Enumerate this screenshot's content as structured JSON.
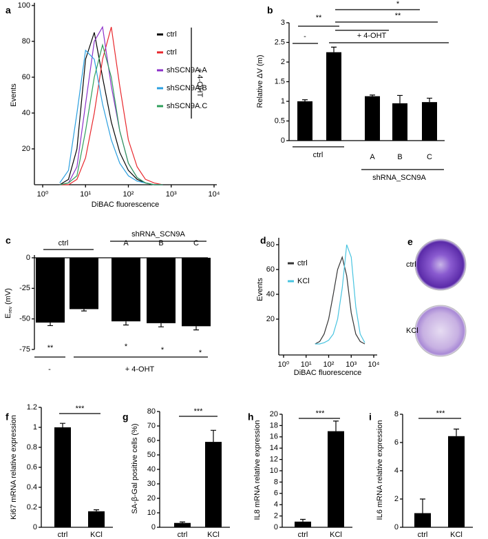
{
  "chart_data": [
    {
      "panel": "a",
      "type": "line",
      "x_label": "DiBAC fluorescence",
      "y_label": "Events",
      "log_x": true,
      "xlim": [
        1,
        10000
      ],
      "xticks": [
        {
          "value": 1,
          "label": "10⁰"
        },
        {
          "value": 10,
          "label": "10¹"
        },
        {
          "value": 100,
          "label": "10²"
        },
        {
          "value": 1000,
          "label": "10³"
        },
        {
          "value": 10000,
          "label": "10⁴"
        }
      ],
      "ylim": [
        0,
        100
      ],
      "yticks": [
        20,
        40,
        60,
        80,
        100
      ],
      "x": [
        2.5,
        4,
        6.3,
        10,
        16,
        25,
        40,
        63,
        100,
        160,
        250,
        400,
        630
      ],
      "series": [
        {
          "name": "ctrl",
          "color": "#000000",
          "values": [
            0,
            3,
            20,
            70,
            85,
            60,
            35,
            18,
            8,
            3,
            1,
            0,
            0
          ]
        },
        {
          "name": "ctrl",
          "color": "#e8262b",
          "values": [
            0,
            0,
            3,
            15,
            40,
            70,
            88,
            55,
            25,
            10,
            3,
            1,
            0
          ]
        },
        {
          "name": "shSCN9A.A",
          "color": "#8b2fc9",
          "values": [
            0,
            1,
            10,
            45,
            80,
            88,
            55,
            30,
            12,
            4,
            1,
            0,
            0
          ]
        },
        {
          "name": "shSCN9A.B",
          "color": "#2a9fe0",
          "values": [
            1,
            8,
            40,
            75,
            70,
            45,
            25,
            12,
            5,
            2,
            1,
            0,
            0
          ]
        },
        {
          "name": "shSCN9A.C",
          "color": "#2e9e5a",
          "values": [
            0,
            1,
            5,
            30,
            60,
            78,
            60,
            30,
            12,
            4,
            1,
            0,
            0
          ]
        }
      ],
      "annotations": [
        "+ 4-OHT"
      ]
    },
    {
      "panel": "b",
      "type": "bar",
      "y_label": "Relative ΔV (m)",
      "color": "#000000",
      "categories": [
        null,
        null,
        "A",
        "B",
        "C"
      ],
      "values": [
        1.0,
        2.25,
        1.13,
        0.95,
        0.98
      ],
      "errors": [
        0.04,
        0.13,
        0.03,
        0.2,
        0.1
      ],
      "ylim": [
        0,
        3
      ],
      "yticks": [
        0,
        0.5,
        1,
        1.5,
        2,
        2.5,
        3
      ],
      "annotations": [
        "**",
        "-",
        "+ 4-OHT",
        "*",
        "**",
        "ctrl",
        "shRNA_SCN9A"
      ]
    },
    {
      "panel": "c",
      "type": "bar",
      "y_label": "E",
      "y_label_sub": "rev",
      "y_label_unit": "(mV)",
      "color": "#000000",
      "categories": [
        null,
        null,
        "A",
        "B",
        "C"
      ],
      "values": [
        -53,
        -42,
        -52,
        -53.5,
        -56
      ],
      "errors": [
        2.5,
        1.5,
        3,
        3,
        3
      ],
      "ylim": [
        -75,
        0
      ],
      "yticks": [
        0,
        -25,
        -50,
        -75
      ],
      "annotations": [
        "ctrl",
        "shRNA_SCN9A",
        "**",
        "*",
        "*",
        "*",
        "-",
        "+ 4-OHT"
      ]
    },
    {
      "panel": "d",
      "type": "line",
      "x_label": "DiBAC fluorescence",
      "y_label": "Events",
      "log_x": true,
      "xlim": [
        1,
        10000
      ],
      "xticks": [
        {
          "value": 1,
          "label": "10⁰"
        },
        {
          "value": 10,
          "label": "10¹"
        },
        {
          "value": 100,
          "label": "10²"
        },
        {
          "value": 1000,
          "label": "10³"
        },
        {
          "value": 10000,
          "label": "10⁴"
        }
      ],
      "ylim": [
        0,
        90
      ],
      "yticks": [
        20,
        40,
        60,
        80
      ],
      "x": [
        25,
        40,
        63,
        100,
        160,
        250,
        400,
        630,
        1000,
        1600,
        2500,
        4000
      ],
      "series": [
        {
          "name": "ctrl",
          "color": "#333333",
          "values": [
            0,
            2,
            8,
            20,
            40,
            60,
            70,
            55,
            25,
            8,
            2,
            0
          ]
        },
        {
          "name": "KCl",
          "color": "#48c4e0",
          "values": [
            0,
            0,
            1,
            3,
            8,
            20,
            45,
            80,
            70,
            30,
            8,
            1
          ]
        }
      ]
    },
    {
      "panel": "f",
      "type": "bar",
      "y_label": "Ki67 mRNA relative expression",
      "color": "#000000",
      "categories": [
        "ctrl",
        "KCl"
      ],
      "values": [
        1.0,
        0.16
      ],
      "errors": [
        0.04,
        0.015
      ],
      "ylim": [
        0,
        1.2
      ],
      "yticks": [
        0,
        0.2,
        0.4,
        0.6,
        0.8,
        1,
        1.2
      ],
      "annotations": [
        "***"
      ]
    },
    {
      "panel": "g",
      "type": "bar",
      "y_label": "SA-β-Gal positive cells (%)",
      "color": "#000000",
      "categories": [
        "ctrl",
        "KCl"
      ],
      "values": [
        3,
        59
      ],
      "errors": [
        0.7,
        8
      ],
      "ylim": [
        0,
        80
      ],
      "yticks": [
        0,
        10,
        20,
        30,
        40,
        50,
        60,
        70,
        80
      ],
      "annotations": [
        "***"
      ]
    },
    {
      "panel": "h",
      "type": "bar",
      "y_label": "IL8 mRNA relative expression",
      "color": "#000000",
      "categories": [
        "ctrl",
        "KCl"
      ],
      "values": [
        1,
        17
      ],
      "errors": [
        0.4,
        1.8
      ],
      "ylim": [
        0,
        20
      ],
      "yticks": [
        0,
        2,
        4,
        6,
        8,
        10,
        12,
        14,
        16,
        18,
        20
      ],
      "annotations": [
        "***"
      ]
    },
    {
      "panel": "i",
      "type": "bar",
      "y_label": "IL6 mRNA relative expression",
      "color": "#000000",
      "categories": [
        "ctrl",
        "KCl"
      ],
      "values": [
        1,
        6.45
      ],
      "errors": [
        1,
        0.5
      ],
      "ylim": [
        0,
        8
      ],
      "yticks": [
        0,
        2,
        4,
        6,
        8
      ],
      "annotations": [
        "***"
      ]
    }
  ],
  "panel_e": {
    "panel": "e",
    "labels": [
      "ctrl",
      "KCl"
    ]
  }
}
